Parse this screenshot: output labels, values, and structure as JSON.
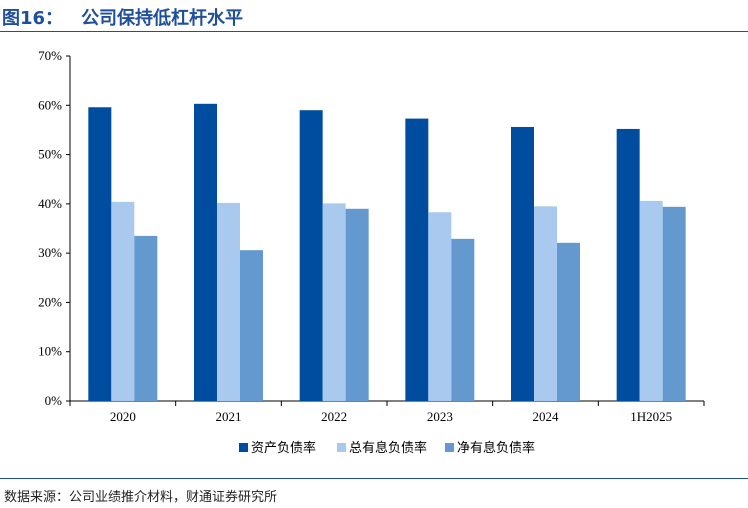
{
  "figure": {
    "number": "图16：",
    "title": "公司保持低杠杆水平",
    "source": "数据来源：公司业绩推介材料，财通证券研究所"
  },
  "chart_data": {
    "type": "bar",
    "categories": [
      "2020",
      "2021",
      "2022",
      "2023",
      "2024",
      "1H2025"
    ],
    "series": [
      {
        "name": "资产负债率",
        "color": "#004c9f",
        "values": [
          59.6,
          60.3,
          59.0,
          57.3,
          55.6,
          55.2
        ]
      },
      {
        "name": "总有息负债率",
        "color": "#a9c9ee",
        "values": [
          40.4,
          40.2,
          40.1,
          38.3,
          39.5,
          40.6
        ]
      },
      {
        "name": "净有息负债率",
        "color": "#6399cf",
        "values": [
          33.5,
          30.6,
          39.0,
          32.9,
          32.1,
          39.4
        ]
      }
    ],
    "ylim": [
      0,
      70
    ],
    "yticks": [
      "0%",
      "10%",
      "20%",
      "30%",
      "40%",
      "50%",
      "60%",
      "70%"
    ],
    "grid": false,
    "legend_position": "bottom"
  }
}
